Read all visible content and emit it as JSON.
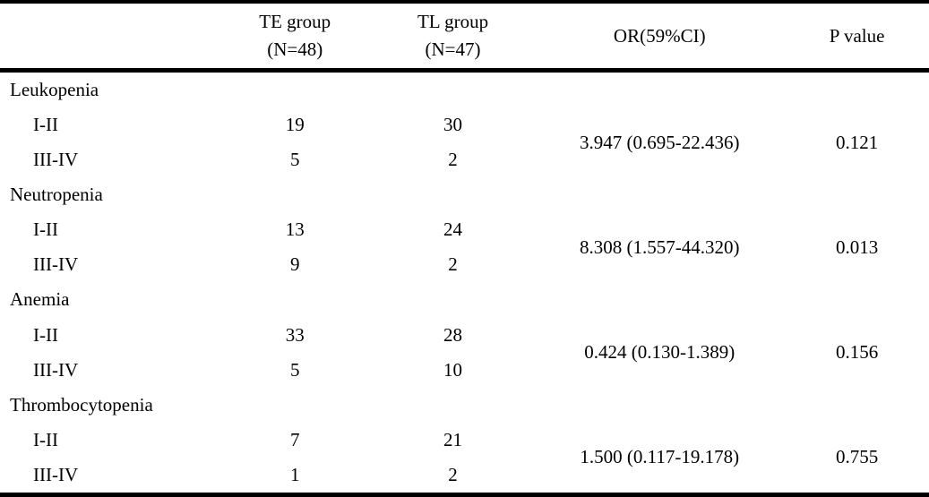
{
  "page": {
    "background_color": "#ffffff",
    "text_color": "#000000",
    "rule_color": "#000000"
  },
  "table": {
    "headers": {
      "stub": "",
      "te_group": {
        "line1": "TE group",
        "line2": "(N=48)"
      },
      "tl_group": {
        "line1": "TL group",
        "line2": "(N=47)"
      },
      "or_ci": "OR(59%CI)",
      "p_value": "P value"
    },
    "sections": [
      {
        "name": "Leukopenia",
        "rows": [
          {
            "grade": "I-II",
            "te": "19",
            "tl": "30"
          },
          {
            "grade": "III-IV",
            "te": "5",
            "tl": "2"
          }
        ],
        "or": "3.947 (0.695-22.436)",
        "p": "0.121"
      },
      {
        "name": "Neutropenia",
        "rows": [
          {
            "grade": "I-II",
            "te": "13",
            "tl": "24"
          },
          {
            "grade": "III-IV",
            "te": "9",
            "tl": "2"
          }
        ],
        "or": "8.308 (1.557-44.320)",
        "p": "0.013"
      },
      {
        "name": "Anemia",
        "rows": [
          {
            "grade": "I-II",
            "te": "33",
            "tl": "28"
          },
          {
            "grade": "III-IV",
            "te": "5",
            "tl": "10"
          }
        ],
        "or": "0.424 (0.130-1.389)",
        "p": "0.156"
      },
      {
        "name": "Thrombocytopenia",
        "rows": [
          {
            "grade": "I-II",
            "te": "7",
            "tl": "21"
          },
          {
            "grade": "III-IV",
            "te": "1",
            "tl": "2"
          }
        ],
        "or": "1.500 (0.117-19.178)",
        "p": "0.755"
      }
    ]
  }
}
